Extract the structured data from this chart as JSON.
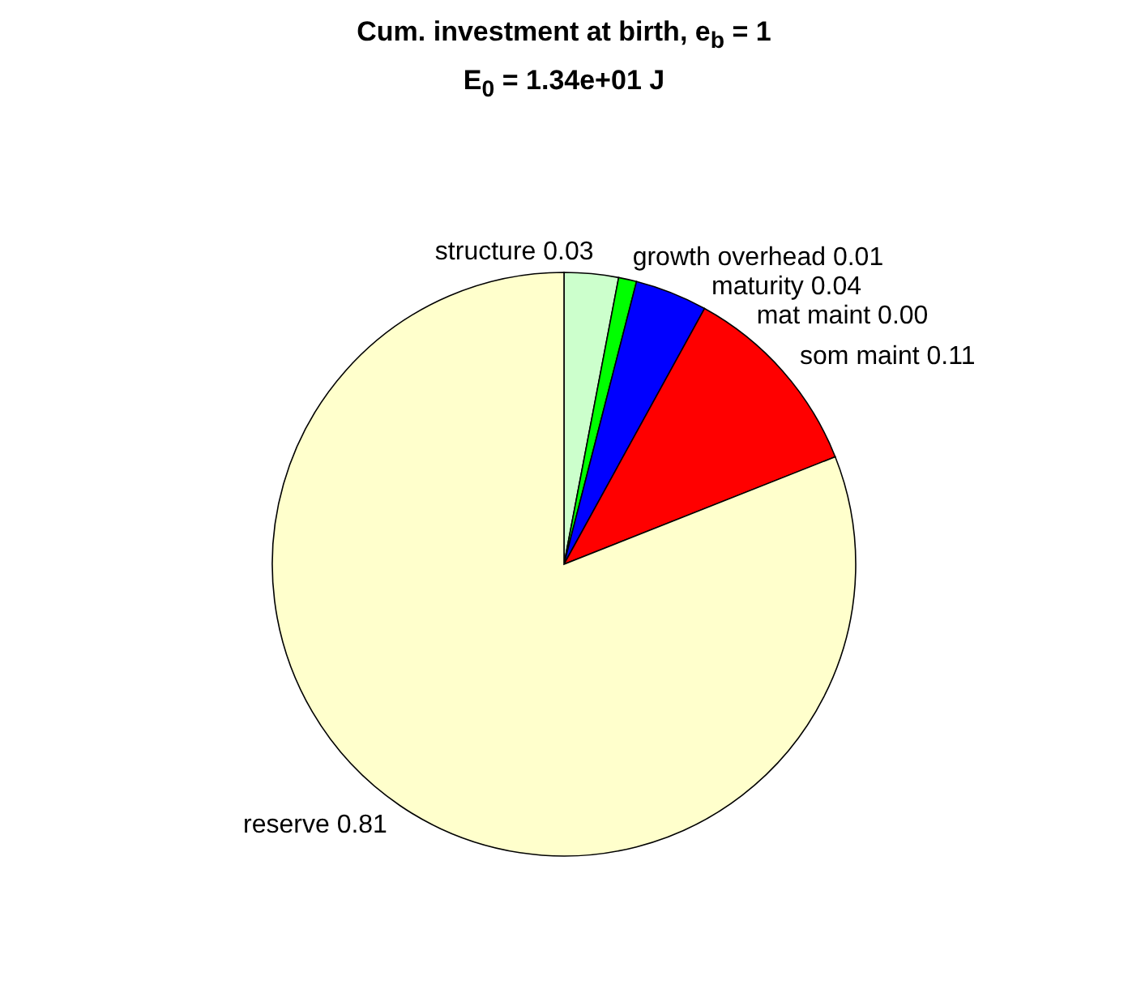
{
  "chart_data": {
    "type": "pie",
    "title": "Cum. investment at birth, e$_{b}$ = 1",
    "subtitle": "E$_{0}$ = 1.34e+01 J",
    "categories": [
      "structure",
      "growth overhead",
      "maturity",
      "mat maint",
      "som maint",
      "reserve"
    ],
    "values": [
      0.03,
      0.01,
      0.04,
      0,
      0.11,
      0.81
    ],
    "value_labels": [
      "0.03",
      "0.01",
      "0.04",
      "0.00",
      "0.11",
      "0.81"
    ],
    "colors": [
      "#ccffcc",
      "#00ff00",
      "#0000ff",
      "#00ffff",
      "#ff0000",
      "#ffffcc"
    ]
  }
}
